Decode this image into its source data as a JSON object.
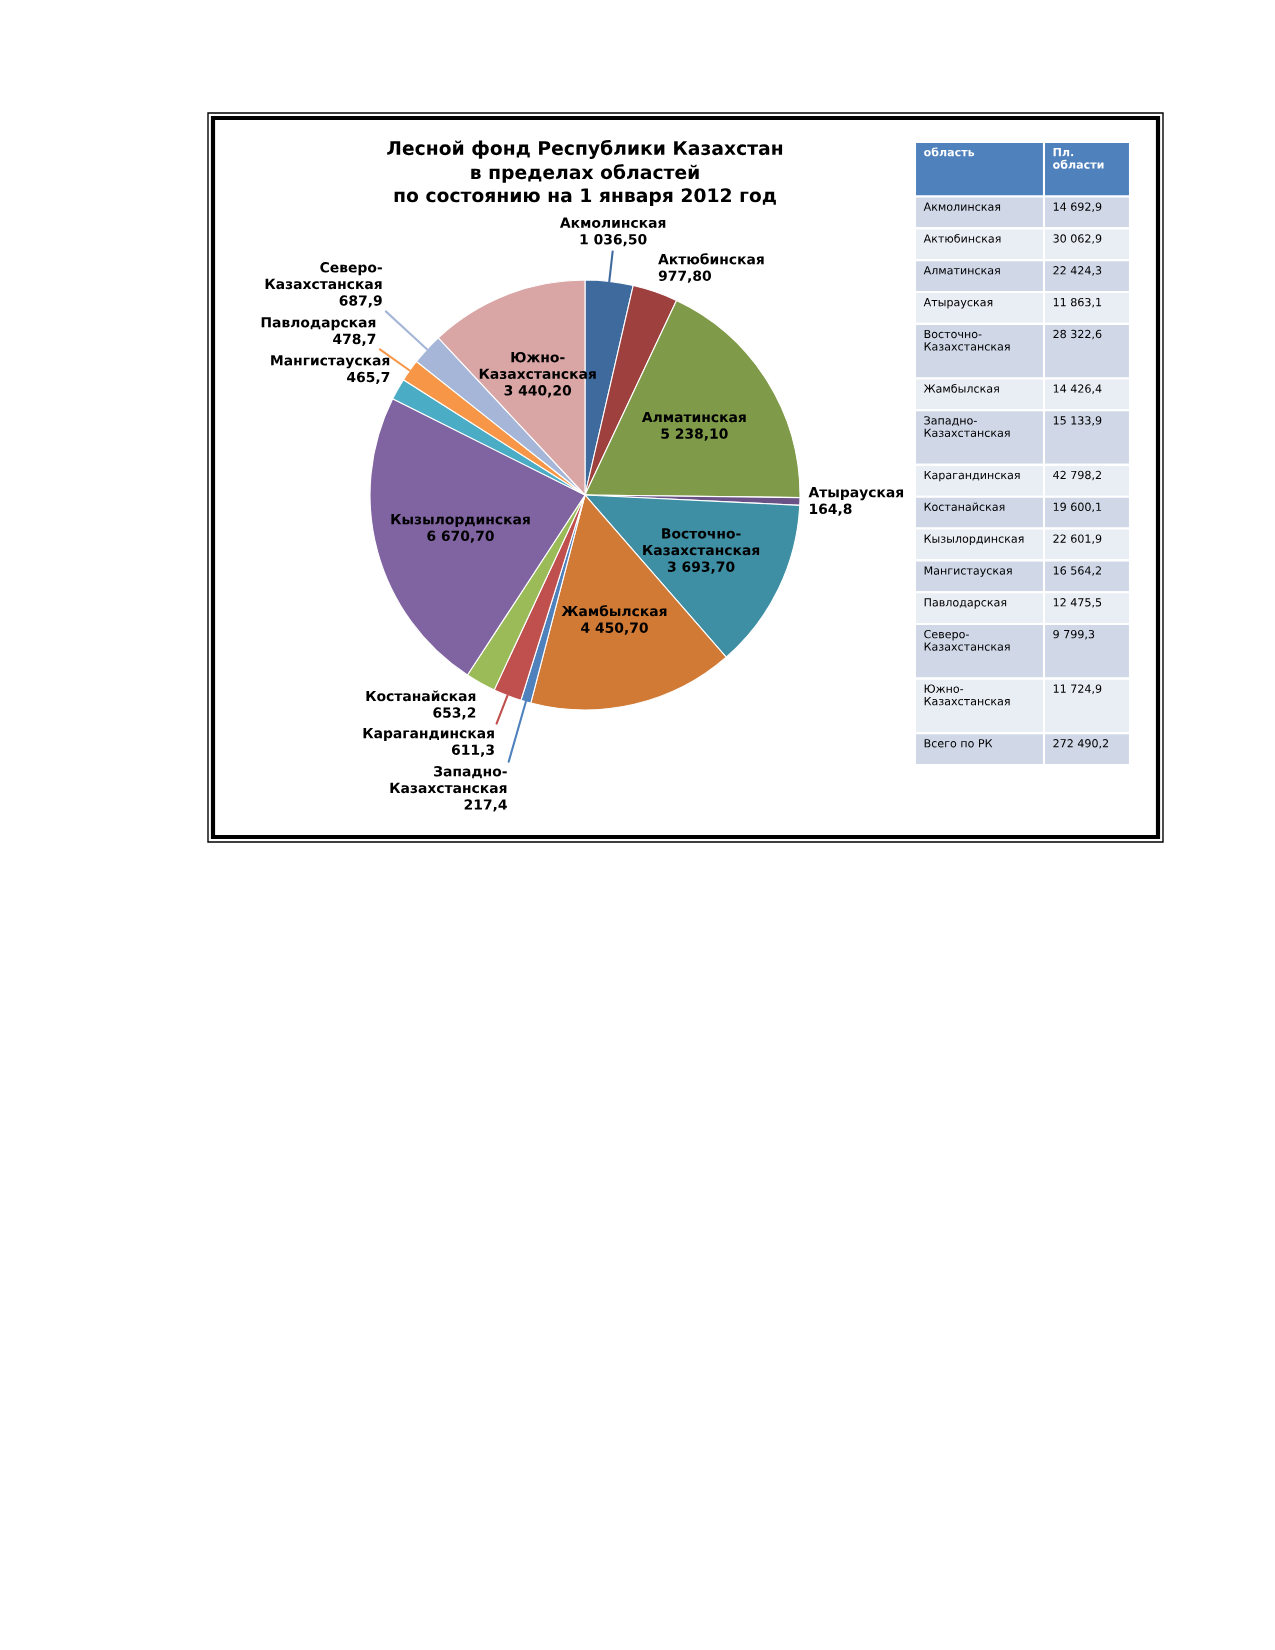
{
  "chart_data": [
    {
      "type": "pie",
      "title": "Лесной фонд Республики Казахстан\nв пределах областей\nпо состоянию на 1 января 2012 год",
      "categories": [
        "Акмолинская",
        "Актюбинская",
        "Алматинская",
        "Атырауская",
        "Восточно-Казахстанская",
        "Жамбылская",
        "Западно-Казахстанская",
        "Карагандинская",
        "Костанайская",
        "Кызылординская",
        "Мангистауская",
        "Павлодарская",
        "Северо-Казахстанская",
        "Южно-Казахстанская"
      ],
      "values": [
        1036.5,
        977.8,
        5238.1,
        164.8,
        3693.7,
        4450.7,
        217.4,
        611.3,
        653.2,
        6670.7,
        465.7,
        478.7,
        687.9,
        3440.2
      ],
      "value_labels": [
        "1 036,50",
        "977,80",
        "5 238,10",
        "164,8",
        "3 693,70",
        "4 450,70",
        "217,4",
        "611,3",
        "653,2",
        "6 670,70",
        "465,7",
        "478,7",
        "687,9",
        "3 440,20"
      ],
      "colors": [
        "#3f6a9e",
        "#9e403d",
        "#7f9a48",
        "#6a5287",
        "#3e8ea4",
        "#d07a35",
        "#4f81bd",
        "#c0504d",
        "#9bbb59",
        "#8064a2",
        "#4bacc6",
        "#f79646",
        "#a5b6d8",
        "#d9a5a5"
      ]
    },
    {
      "type": "other",
      "annotations": [
        "область",
        "Пл. области"
      ],
      "categories": [
        "Акмолинская",
        "Актюбинская",
        "Алматинская",
        "Атырауская",
        "Восточно-Казахстанская",
        "Жамбылская",
        "Западно-Казахстанская",
        "Карагандинская",
        "Костанайская",
        "Кызылординская",
        "Мангистауская",
        "Павлодарская",
        "Северо-Казахстанская",
        "Южно-Казахстанская",
        "Всего по РК"
      ],
      "values": [
        14692.9,
        30062.9,
        22424.3,
        11863.1,
        28322.6,
        14426.4,
        15133.9,
        42798.2,
        19600.1,
        22601.9,
        16564.2,
        12475.5,
        9799.3,
        11724.9,
        272490.2
      ],
      "value_labels": [
        "14 692,9",
        "30 062,9",
        "22 424,3",
        "11 863,1",
        "28 322,6",
        "14 426,4",
        "15 133,9",
        "42 798,2",
        "19 600,1",
        "22 601,9",
        "16 564,2",
        "12 475,5",
        "9 799,3",
        "11 724,9",
        "272 490,2"
      ]
    }
  ]
}
